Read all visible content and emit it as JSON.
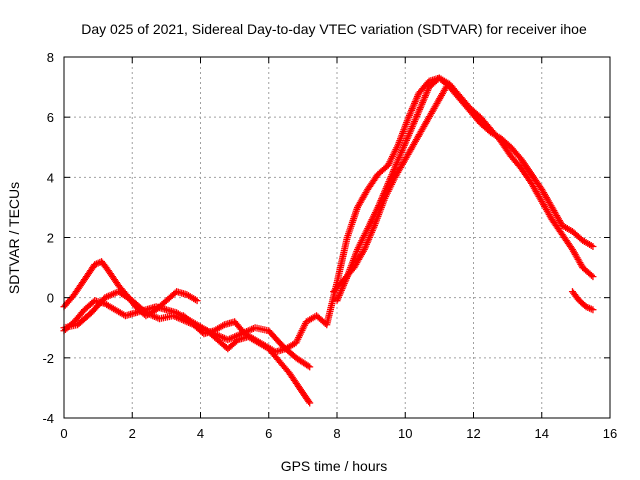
{
  "chart_data": {
    "type": "scatter",
    "title": "Day 025 of 2021, Sidereal Day-to-day VTEC variation (SDTVAR) for receiver ihoe",
    "xlabel": "GPS time / hours",
    "ylabel": "SDTVAR / TECUs",
    "xlim": [
      0,
      16
    ],
    "ylim": [
      -4,
      8
    ],
    "x_ticks": [
      0,
      2,
      4,
      6,
      8,
      10,
      12,
      14,
      16
    ],
    "y_ticks": [
      -4,
      -2,
      0,
      2,
      4,
      6,
      8
    ],
    "grid": true,
    "legend": "none",
    "marker": "plus",
    "color": "#ff0000",
    "series": [
      {
        "name": "track-a",
        "x": [
          0.0,
          0.3,
          0.6,
          0.9,
          1.1,
          1.3,
          1.6,
          1.9,
          2.1,
          2.4,
          2.7,
          3.0,
          3.3,
          3.6,
          3.9
        ],
        "y": [
          -0.3,
          0.1,
          0.6,
          1.1,
          1.2,
          0.9,
          0.4,
          0.0,
          -0.3,
          -0.6,
          -0.4,
          -0.1,
          0.2,
          0.1,
          -0.1
        ]
      },
      {
        "name": "track-b",
        "x": [
          0.0,
          0.3,
          0.6,
          0.9,
          1.2,
          1.5,
          1.8,
          2.1,
          2.4,
          2.7,
          3.0,
          3.3,
          3.6,
          3.9,
          4.2,
          4.5,
          4.8,
          5.1,
          5.4,
          5.7,
          6.0,
          6.3,
          6.6,
          6.9,
          7.2
        ],
        "y": [
          -1.1,
          -0.8,
          -0.4,
          -0.1,
          -0.2,
          -0.4,
          -0.6,
          -0.5,
          -0.4,
          -0.3,
          -0.4,
          -0.5,
          -0.7,
          -0.9,
          -1.1,
          -1.4,
          -1.7,
          -1.4,
          -1.3,
          -1.5,
          -1.7,
          -2.1,
          -2.5,
          -3.0,
          -3.5
        ]
      },
      {
        "name": "track-c",
        "x": [
          0.0,
          0.4,
          0.8,
          1.2,
          1.6,
          2.0,
          2.4,
          2.8,
          3.2,
          3.6,
          4.0,
          4.4,
          4.8,
          5.2,
          5.6,
          6.0,
          6.4,
          6.8,
          7.2
        ],
        "y": [
          -1.0,
          -0.9,
          -0.5,
          0.0,
          0.2,
          -0.1,
          -0.5,
          -0.7,
          -0.6,
          -0.8,
          -1.0,
          -1.2,
          -1.4,
          -1.2,
          -1.0,
          -1.1,
          -1.6,
          -2.0,
          -2.3
        ]
      },
      {
        "name": "track-d",
        "x": [
          3.5,
          3.8,
          4.1,
          4.4,
          4.7,
          5.0,
          5.3,
          5.6,
          5.9,
          6.2,
          6.5,
          6.8,
          7.1,
          7.4,
          7.7,
          8.0,
          8.3,
          8.6,
          8.9,
          9.2,
          9.5,
          9.8,
          10.1,
          10.4,
          10.7,
          11.0,
          11.3,
          11.6,
          11.9,
          12.2,
          12.5,
          12.8,
          13.1,
          13.4,
          13.7,
          14.0,
          14.3,
          14.6,
          14.9,
          15.2,
          15.5
        ],
        "y": [
          -0.6,
          -0.9,
          -1.2,
          -1.1,
          -0.9,
          -0.8,
          -1.2,
          -1.4,
          -1.6,
          -1.8,
          -1.7,
          -1.5,
          -0.8,
          -0.6,
          -0.9,
          0.5,
          2.0,
          3.0,
          3.6,
          4.1,
          4.4,
          5.1,
          6.0,
          6.8,
          7.2,
          7.3,
          7.0,
          6.6,
          6.2,
          5.8,
          5.5,
          5.3,
          5.0,
          4.6,
          4.1,
          3.6,
          3.0,
          2.4,
          2.2,
          1.9,
          1.7
        ]
      },
      {
        "name": "track-e",
        "x": [
          8.0,
          8.3,
          8.6,
          8.9,
          9.2,
          9.5,
          9.8,
          10.1,
          10.4,
          10.7,
          11.0,
          11.3,
          11.6,
          11.9,
          12.2,
          12.5,
          12.8,
          13.1,
          13.4,
          13.7,
          14.0,
          14.3,
          14.6,
          14.9,
          15.2,
          15.5
        ],
        "y": [
          -0.1,
          0.7,
          1.6,
          2.3,
          3.0,
          3.8,
          4.6,
          5.4,
          6.2,
          7.0,
          7.3,
          7.1,
          6.7,
          6.3,
          6.0,
          5.6,
          5.2,
          4.7,
          4.3,
          3.8,
          3.2,
          2.6,
          2.1,
          1.6,
          1.0,
          0.7
        ]
      },
      {
        "name": "track-f",
        "x": [
          7.9,
          8.2,
          8.5,
          8.8,
          9.1,
          9.4,
          9.7,
          10.0,
          10.3,
          10.6,
          10.9,
          11.2
        ],
        "y": [
          0.2,
          0.6,
          1.0,
          1.6,
          2.4,
          3.3,
          4.0,
          4.6,
          5.2,
          5.8,
          6.4,
          7.0
        ]
      },
      {
        "name": "track-g",
        "x": [
          14.9,
          15.1,
          15.3,
          15.5
        ],
        "y": [
          0.2,
          -0.1,
          -0.3,
          -0.4
        ]
      }
    ]
  }
}
